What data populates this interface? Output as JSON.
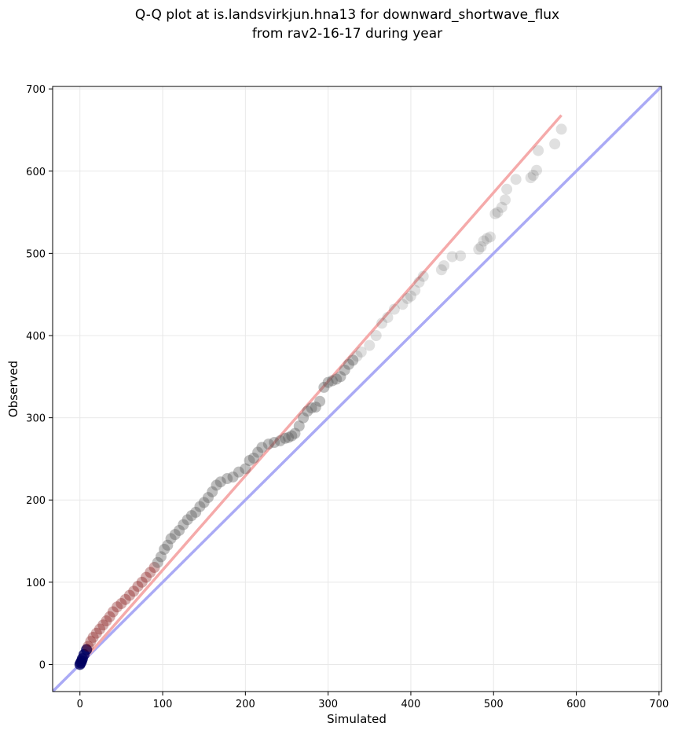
{
  "chart_data": {
    "type": "scatter",
    "title": [
      "Q-Q plot at is.landsvirkjun.hna13 for downward_shortwave_flux",
      "from rav2-16-17 during year"
    ],
    "xlabel": "Simulated",
    "ylabel": "Observed",
    "xlim": [
      -33,
      703
    ],
    "ylim": [
      -33,
      703
    ],
    "xticks": [
      0,
      100,
      200,
      300,
      400,
      500,
      600,
      700
    ],
    "yticks": [
      0,
      100,
      200,
      300,
      400,
      500,
      600,
      700
    ],
    "grid": true,
    "reference_lines": [
      {
        "name": "1:1",
        "color": "#aaaaf5",
        "x": [
          -33,
          703
        ],
        "y": [
          -33,
          703
        ]
      },
      {
        "name": "fit",
        "color": "#f5aaaa",
        "x": [
          0,
          582
        ],
        "y": [
          0,
          668
        ]
      }
    ],
    "point_color": "#555555",
    "low_quantile_colors": [
      "#000060",
      "#7a0000"
    ],
    "x": [
      0,
      1,
      2,
      3,
      5,
      8,
      10,
      13,
      16,
      20,
      24,
      28,
      32,
      36,
      40,
      45,
      50,
      55,
      60,
      65,
      70,
      75,
      80,
      85,
      90,
      94,
      98,
      102,
      106,
      110,
      115,
      120,
      125,
      130,
      135,
      140,
      145,
      150,
      155,
      160,
      165,
      170,
      178,
      185,
      192,
      200,
      205,
      210,
      215,
      220,
      228,
      235,
      242,
      248,
      252,
      256,
      260,
      265,
      270,
      275,
      280,
      285,
      290,
      295,
      300,
      305,
      310,
      315,
      320,
      325,
      330,
      335,
      340,
      350,
      358,
      365,
      372,
      380,
      390,
      396,
      400,
      405,
      410,
      415,
      437,
      440,
      450,
      460,
      482,
      485,
      488,
      492,
      496,
      502,
      505,
      510,
      514,
      516,
      527,
      545,
      548,
      552,
      554,
      574,
      582
    ],
    "y": [
      0,
      2,
      4,
      7,
      12,
      18,
      22,
      28,
      33,
      38,
      43,
      48,
      53,
      58,
      64,
      70,
      74,
      79,
      84,
      89,
      95,
      100,
      106,
      112,
      118,
      124,
      131,
      140,
      145,
      153,
      158,
      163,
      170,
      176,
      181,
      185,
      192,
      197,
      203,
      210,
      218,
      222,
      226,
      228,
      234,
      238,
      248,
      251,
      258,
      264,
      268,
      270,
      272,
      275,
      276,
      278,
      281,
      290,
      300,
      308,
      312,
      313,
      320,
      337,
      343,
      345,
      347,
      350,
      358,
      365,
      370,
      375,
      380,
      388,
      400,
      415,
      422,
      432,
      438,
      445,
      448,
      455,
      465,
      472,
      480,
      485,
      496,
      497,
      505,
      508,
      515,
      518,
      520,
      548,
      550,
      556,
      565,
      578,
      590,
      592,
      595,
      601,
      625,
      633,
      651
    ]
  }
}
